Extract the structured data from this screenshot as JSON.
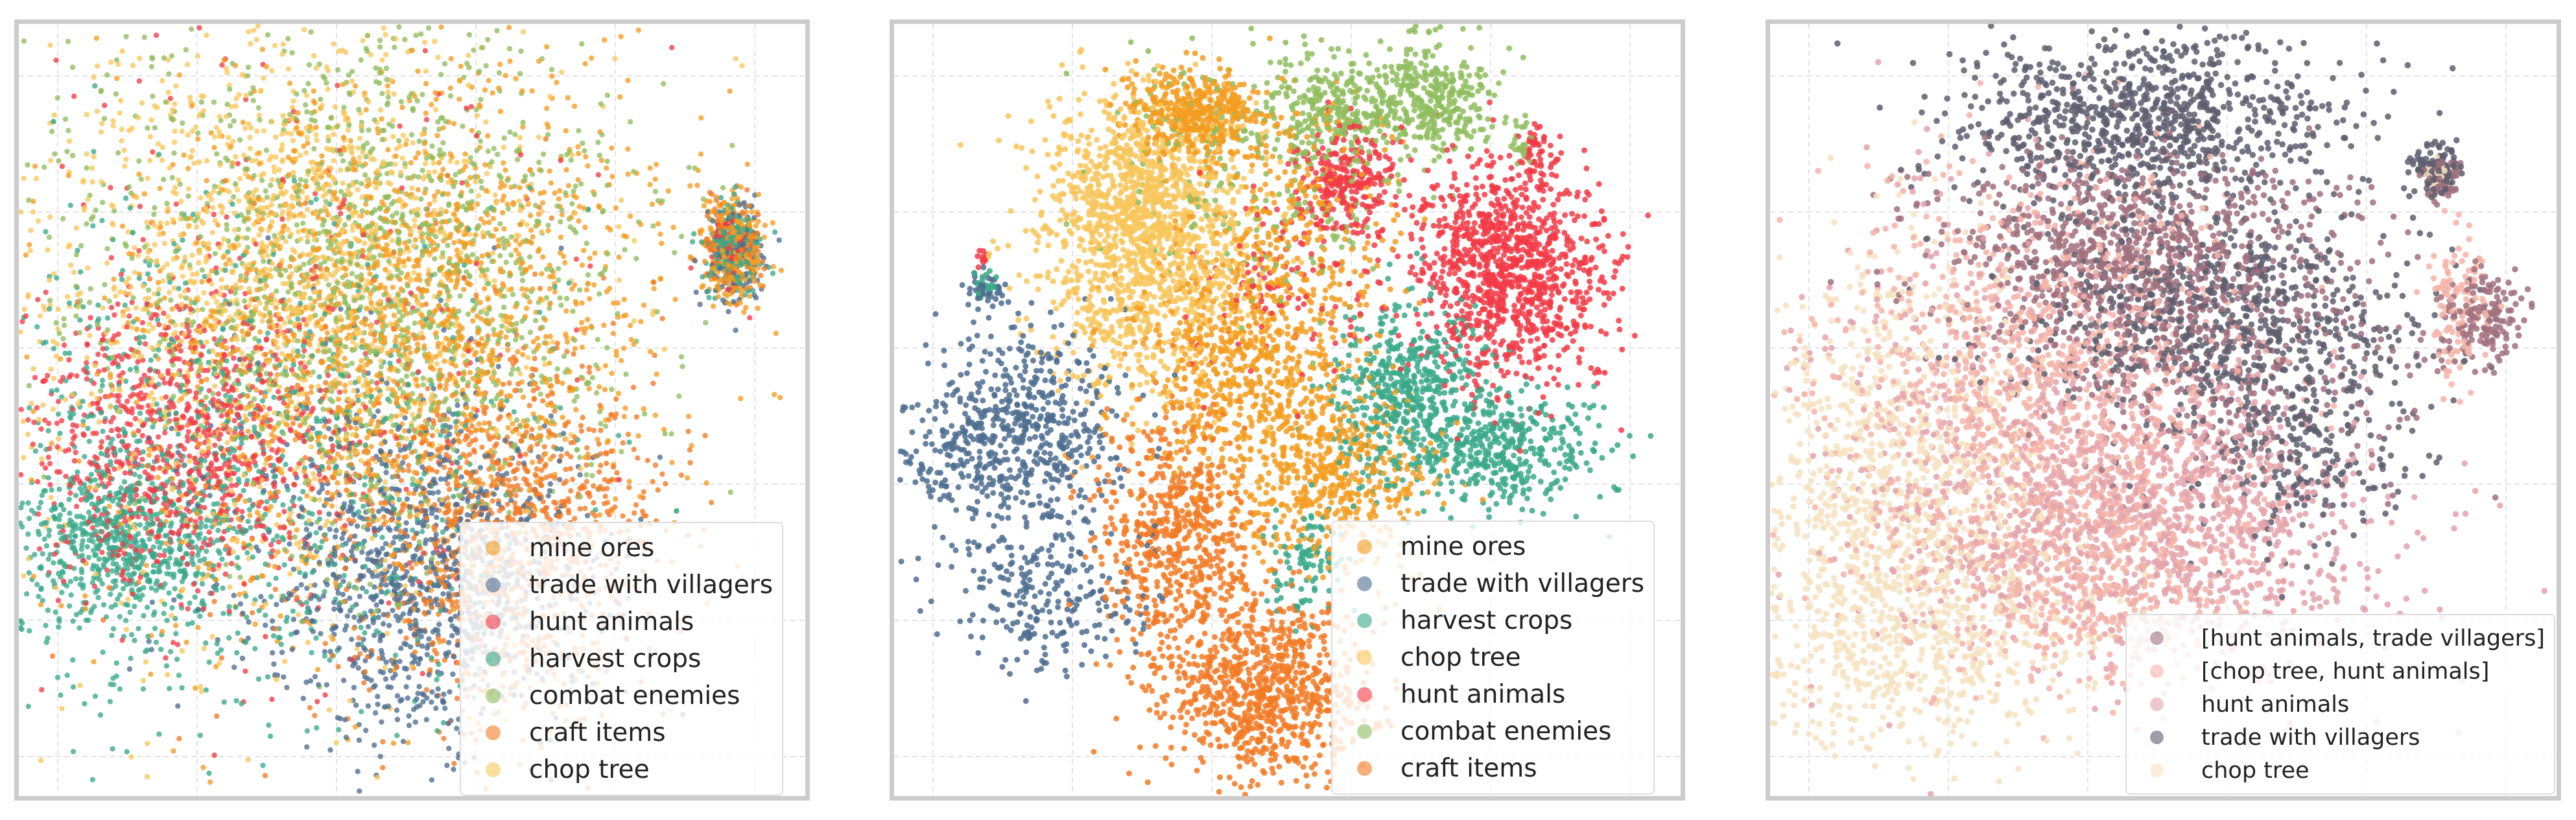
{
  "chart_data": [
    {
      "type": "scatter",
      "title": "",
      "xlabel": "",
      "ylabel": "",
      "grid": true,
      "legend_placement": "lower-right",
      "series": [
        {
          "name": "mine ores",
          "color": "#f39c1f"
        },
        {
          "name": "trade with villagers",
          "color": "#4e6d8f"
        },
        {
          "name": "hunt animals",
          "color": "#f23b47"
        },
        {
          "name": "harvest crops",
          "color": "#3aa98a"
        },
        {
          "name": "combat enemies",
          "color": "#8fbd5e"
        },
        {
          "name": "craft items",
          "color": "#f27a24"
        },
        {
          "name": "chop tree",
          "color": "#f8c65a"
        }
      ]
    },
    {
      "type": "scatter",
      "title": "",
      "xlabel": "",
      "ylabel": "",
      "grid": true,
      "legend_placement": "lower-right",
      "series": [
        {
          "name": "mine ores",
          "color": "#f39c1f"
        },
        {
          "name": "trade with villagers",
          "color": "#4e6d8f"
        },
        {
          "name": "harvest crops",
          "color": "#3aa98a"
        },
        {
          "name": "chop tree",
          "color": "#f8c65a"
        },
        {
          "name": "hunt animals",
          "color": "#f23b47"
        },
        {
          "name": "combat enemies",
          "color": "#8fbd5e"
        },
        {
          "name": "craft items",
          "color": "#f27a24"
        }
      ]
    },
    {
      "type": "scatter",
      "title": "",
      "xlabel": "",
      "ylabel": "",
      "grid": true,
      "legend_placement": "lower-right",
      "series": [
        {
          "name": "[hunt animals, trade villagers]",
          "color": "#a0707d"
        },
        {
          "name": "[chop tree, hunt animals]",
          "color": "#f4b4a8"
        },
        {
          "name": "hunt animals",
          "color": "#e3a3aa"
        },
        {
          "name": "trade with villagers",
          "color": "#5e5e6e"
        },
        {
          "name": "chop tree",
          "color": "#f6e2c0"
        }
      ]
    }
  ]
}
